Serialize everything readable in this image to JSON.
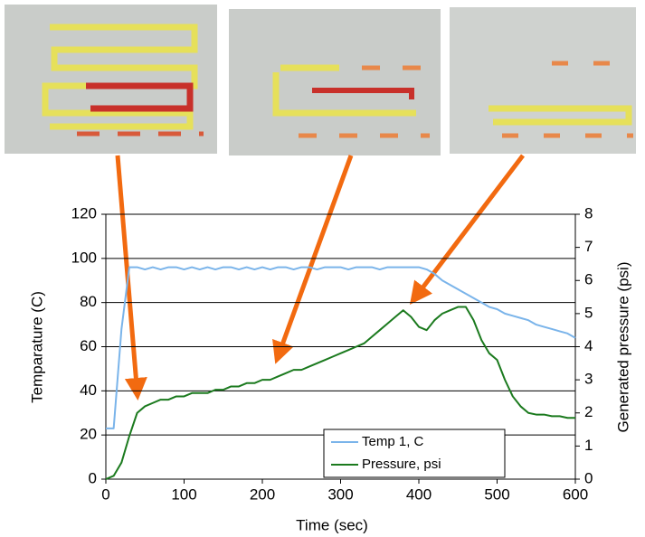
{
  "chart_data": {
    "type": "line",
    "xlabel": "Time (sec)",
    "ylabel": "Temparature (C)",
    "y2label": "Generated pressure (psi)",
    "x": [
      0,
      10,
      20,
      30,
      40,
      50,
      60,
      70,
      80,
      90,
      100,
      110,
      120,
      130,
      140,
      150,
      160,
      170,
      180,
      190,
      200,
      210,
      220,
      230,
      240,
      250,
      260,
      270,
      280,
      290,
      300,
      310,
      320,
      330,
      340,
      350,
      360,
      370,
      380,
      390,
      400,
      410,
      420,
      430,
      440,
      450,
      460,
      470,
      480,
      490,
      500,
      510,
      520,
      530,
      540,
      550,
      560,
      570,
      580,
      590,
      600
    ],
    "series": [
      {
        "name": "Temp 1, C",
        "color": "#7ab4ea",
        "values": [
          23,
          23,
          68,
          96,
          96,
          95,
          96,
          95,
          96,
          96,
          95,
          96,
          95,
          96,
          95,
          96,
          96,
          95,
          96,
          95,
          96,
          95,
          96,
          96,
          95,
          96,
          96,
          95,
          96,
          96,
          96,
          95,
          96,
          96,
          96,
          95,
          96,
          96,
          96,
          96,
          96,
          95,
          93,
          90,
          88,
          86,
          84,
          82,
          80,
          78,
          77,
          75,
          74,
          73,
          72,
          70,
          69,
          68,
          67,
          66,
          64
        ]
      },
      {
        "name": "Pressure, psi",
        "color": "#1b7a1e",
        "axis": "y2",
        "values": [
          0,
          0.1,
          0.5,
          1.3,
          2.0,
          2.2,
          2.3,
          2.4,
          2.4,
          2.5,
          2.5,
          2.6,
          2.6,
          2.6,
          2.7,
          2.7,
          2.8,
          2.8,
          2.9,
          2.9,
          3.0,
          3.0,
          3.1,
          3.2,
          3.3,
          3.3,
          3.4,
          3.5,
          3.6,
          3.7,
          3.8,
          3.9,
          4.0,
          4.1,
          4.3,
          4.5,
          4.7,
          4.9,
          5.1,
          4.9,
          4.6,
          4.5,
          4.8,
          5.0,
          5.1,
          5.2,
          5.2,
          4.8,
          4.2,
          3.8,
          3.6,
          3.0,
          2.5,
          2.2,
          2.0,
          1.95,
          1.95,
          1.9,
          1.9,
          1.85,
          1.85
        ]
      }
    ],
    "xlim": [
      0,
      600
    ],
    "xticks": [
      0,
      100,
      200,
      300,
      400,
      500,
      600
    ],
    "ylim": [
      0,
      120
    ],
    "yticks": [
      0,
      20,
      40,
      60,
      80,
      100,
      120
    ],
    "y2lim": [
      0,
      8
    ],
    "y2ticks": [
      0,
      1,
      2,
      3,
      4,
      5,
      6,
      7,
      8
    ],
    "grid": true,
    "legend": "lower right"
  }
}
